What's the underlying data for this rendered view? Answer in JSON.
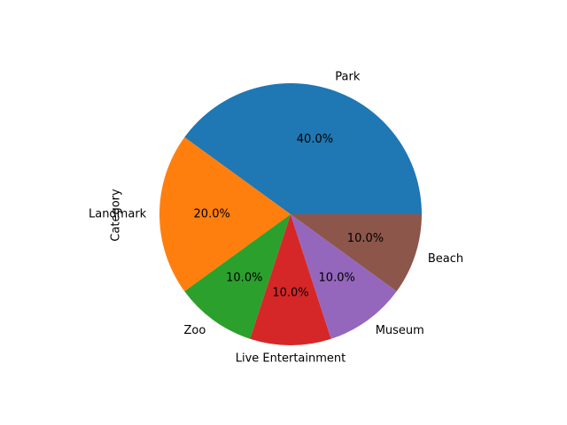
{
  "chart_data": {
    "type": "pie",
    "ylabel": "Category",
    "categories": [
      "Park",
      "Landmark",
      "Zoo",
      "Live Entertainment",
      "Museum",
      "Beach"
    ],
    "values": [
      40.0,
      20.0,
      10.0,
      10.0,
      10.0,
      10.0
    ],
    "pct_labels": [
      "40.0%",
      "20.0%",
      "10.0%",
      "10.0%",
      "10.0%",
      "10.0%"
    ],
    "colors": [
      "#1f77b4",
      "#ff7f0e",
      "#2ca02c",
      "#d62728",
      "#9467bd",
      "#8c564b"
    ],
    "start_angle_deg": 0,
    "direction": "counterclockwise"
  }
}
